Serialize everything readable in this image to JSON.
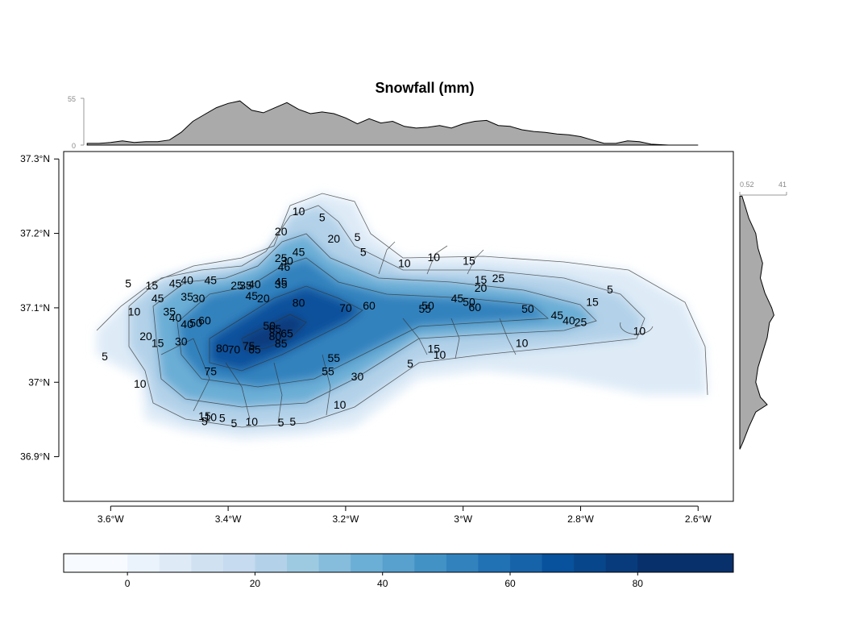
{
  "chart_data": {
    "type": "heatmap",
    "title": "Snowfall (mm)",
    "x_axis": {
      "range": [
        -3.68,
        -2.54
      ],
      "ticks": [
        -3.6,
        -3.4,
        -3.2,
        -3.0,
        -2.8,
        -2.6
      ],
      "tick_labels": [
        "3.6°W",
        "3.4°W",
        "3.2°W",
        "3°W",
        "2.8°W",
        "2.6°W"
      ]
    },
    "y_axis": {
      "range": [
        36.84,
        37.31
      ],
      "ticks": [
        36.9,
        37.0,
        37.1,
        37.2,
        37.3
      ],
      "tick_labels": [
        "36.9°N",
        "37°N",
        "37.1°N",
        "37.2°N",
        "37.3°N"
      ]
    },
    "colorbar": {
      "range": [
        -10,
        95
      ],
      "ticks": [
        0,
        20,
        40,
        60,
        80
      ],
      "tick_labels": [
        "0",
        "20",
        "40",
        "60",
        "80"
      ],
      "colors": [
        "#f7fbff",
        "#eaf3fb",
        "#deebf7",
        "#d0e2f2",
        "#c6dbef",
        "#b3d2e9",
        "#9ecae1",
        "#86bcdc",
        "#6baed6",
        "#58a0ce",
        "#4292c6",
        "#3282be",
        "#2171b5",
        "#1763aa",
        "#08519c",
        "#08468b",
        "#083b7b",
        "#08306b",
        "#08306b"
      ]
    },
    "top_marginal": {
      "range": [
        0,
        55
      ],
      "tick_labels": [
        "0",
        "55"
      ],
      "profile": [
        [
          -3.64,
          2
        ],
        [
          -3.62,
          2
        ],
        [
          -3.6,
          3
        ],
        [
          -3.58,
          5
        ],
        [
          -3.56,
          3
        ],
        [
          -3.54,
          4
        ],
        [
          -3.52,
          4
        ],
        [
          -3.5,
          6
        ],
        [
          -3.48,
          15
        ],
        [
          -3.46,
          28
        ],
        [
          -3.44,
          36
        ],
        [
          -3.42,
          44
        ],
        [
          -3.4,
          49
        ],
        [
          -3.38,
          52
        ],
        [
          -3.36,
          41
        ],
        [
          -3.34,
          38
        ],
        [
          -3.32,
          44
        ],
        [
          -3.3,
          50
        ],
        [
          -3.28,
          42
        ],
        [
          -3.26,
          37
        ],
        [
          -3.24,
          39
        ],
        [
          -3.22,
          37
        ],
        [
          -3.2,
          32
        ],
        [
          -3.18,
          25
        ],
        [
          -3.16,
          31
        ],
        [
          -3.14,
          26
        ],
        [
          -3.12,
          28
        ],
        [
          -3.1,
          22
        ],
        [
          -3.08,
          20
        ],
        [
          -3.06,
          21
        ],
        [
          -3.04,
          23
        ],
        [
          -3.02,
          20
        ],
        [
          -3.0,
          25
        ],
        [
          -2.98,
          28
        ],
        [
          -2.96,
          29
        ],
        [
          -2.94,
          23
        ],
        [
          -2.92,
          22
        ],
        [
          -2.9,
          18
        ],
        [
          -2.88,
          16
        ],
        [
          -2.86,
          15
        ],
        [
          -2.84,
          13
        ],
        [
          -2.82,
          12
        ],
        [
          -2.8,
          10
        ],
        [
          -2.78,
          6
        ],
        [
          -2.76,
          2
        ],
        [
          -2.74,
          2
        ],
        [
          -2.72,
          5
        ],
        [
          -2.7,
          4
        ],
        [
          -2.68,
          1
        ],
        [
          -2.65,
          0
        ],
        [
          -2.6,
          0
        ]
      ]
    },
    "right_marginal": {
      "range": [
        0.52,
        41
      ],
      "tick_labels": [
        "0.52",
        "41"
      ],
      "profile": [
        [
          37.25,
          2
        ],
        [
          37.24,
          4
        ],
        [
          37.22,
          8
        ],
        [
          37.2,
          14
        ],
        [
          37.18,
          16
        ],
        [
          37.16,
          20
        ],
        [
          37.14,
          18
        ],
        [
          37.12,
          22
        ],
        [
          37.1,
          28
        ],
        [
          37.09,
          30
        ],
        [
          37.08,
          26
        ],
        [
          37.06,
          24
        ],
        [
          37.04,
          20
        ],
        [
          37.02,
          16
        ],
        [
          37.0,
          14
        ],
        [
          36.98,
          18
        ],
        [
          36.97,
          24
        ],
        [
          36.96,
          14
        ],
        [
          36.94,
          8
        ],
        [
          36.92,
          3
        ],
        [
          36.91,
          0
        ]
      ]
    },
    "contour_labels": [
      {
        "text": "10",
        "lon": -3.28,
        "lat": 37.23
      },
      {
        "text": "5",
        "lon": -3.24,
        "lat": 37.222
      },
      {
        "text": "20",
        "lon": -3.31,
        "lat": 37.203
      },
      {
        "text": "20",
        "lon": -3.22,
        "lat": 37.193
      },
      {
        "text": "5",
        "lon": -3.18,
        "lat": 37.195
      },
      {
        "text": "45",
        "lon": -3.28,
        "lat": 37.175
      },
      {
        "text": "5",
        "lon": -3.17,
        "lat": 37.175
      },
      {
        "text": "25",
        "lon": -3.31,
        "lat": 37.167
      },
      {
        "text": "30",
        "lon": -3.3,
        "lat": 37.163
      },
      {
        "text": "46",
        "lon": -3.305,
        "lat": 37.155
      },
      {
        "text": "10",
        "lon": -3.1,
        "lat": 37.16
      },
      {
        "text": "10",
        "lon": -3.05,
        "lat": 37.168
      },
      {
        "text": "15",
        "lon": -2.99,
        "lat": 37.163
      },
      {
        "text": "25",
        "lon": -2.94,
        "lat": 37.14
      },
      {
        "text": "15",
        "lon": -2.97,
        "lat": 37.138
      },
      {
        "text": "20",
        "lon": -2.97,
        "lat": 37.127
      },
      {
        "text": "5",
        "lon": -2.75,
        "lat": 37.125
      },
      {
        "text": "5",
        "lon": -3.57,
        "lat": 37.133
      },
      {
        "text": "15",
        "lon": -3.53,
        "lat": 37.13
      },
      {
        "text": "45",
        "lon": -3.49,
        "lat": 37.133
      },
      {
        "text": "40",
        "lon": -3.47,
        "lat": 37.137
      },
      {
        "text": "45",
        "lon": -3.43,
        "lat": 37.137
      },
      {
        "text": "25",
        "lon": -3.385,
        "lat": 37.13
      },
      {
        "text": "35",
        "lon": -3.37,
        "lat": 37.13
      },
      {
        "text": "40",
        "lon": -3.355,
        "lat": 37.132
      },
      {
        "text": "45",
        "lon": -3.31,
        "lat": 37.135
      },
      {
        "text": "35",
        "lon": -3.31,
        "lat": 37.132
      },
      {
        "text": "45",
        "lon": -3.52,
        "lat": 37.113
      },
      {
        "text": "35",
        "lon": -3.47,
        "lat": 37.115
      },
      {
        "text": "30",
        "lon": -3.45,
        "lat": 37.113
      },
      {
        "text": "45",
        "lon": -3.36,
        "lat": 37.116
      },
      {
        "text": "20",
        "lon": -3.34,
        "lat": 37.113
      },
      {
        "text": "80",
        "lon": -3.28,
        "lat": 37.107
      },
      {
        "text": "70",
        "lon": -3.2,
        "lat": 37.1
      },
      {
        "text": "60",
        "lon": -3.16,
        "lat": 37.103
      },
      {
        "text": "45",
        "lon": -3.01,
        "lat": 37.113
      },
      {
        "text": "50",
        "lon": -2.99,
        "lat": 37.108
      },
      {
        "text": "50",
        "lon": -3.06,
        "lat": 37.103
      },
      {
        "text": "55",
        "lon": -3.065,
        "lat": 37.099
      },
      {
        "text": "60",
        "lon": -2.98,
        "lat": 37.101
      },
      {
        "text": "50",
        "lon": -2.89,
        "lat": 37.099
      },
      {
        "text": "15",
        "lon": -2.78,
        "lat": 37.108
      },
      {
        "text": "10",
        "lon": -3.56,
        "lat": 37.095
      },
      {
        "text": "35",
        "lon": -3.5,
        "lat": 37.095
      },
      {
        "text": "40",
        "lon": -3.49,
        "lat": 37.087
      },
      {
        "text": "40",
        "lon": -3.47,
        "lat": 37.078
      },
      {
        "text": "50",
        "lon": -3.455,
        "lat": 37.08
      },
      {
        "text": "60",
        "lon": -3.44,
        "lat": 37.083
      },
      {
        "text": "45",
        "lon": -2.84,
        "lat": 37.09
      },
      {
        "text": "40",
        "lon": -2.82,
        "lat": 37.083
      },
      {
        "text": "25",
        "lon": -2.8,
        "lat": 37.081
      },
      {
        "text": "10",
        "lon": -2.7,
        "lat": 37.069
      },
      {
        "text": "20",
        "lon": -3.54,
        "lat": 37.062
      },
      {
        "text": "15",
        "lon": -3.52,
        "lat": 37.053
      },
      {
        "text": "30",
        "lon": -3.48,
        "lat": 37.055
      },
      {
        "text": "50",
        "lon": -3.33,
        "lat": 37.076
      },
      {
        "text": "65",
        "lon": -3.32,
        "lat": 37.072
      },
      {
        "text": "65",
        "lon": -3.3,
        "lat": 37.066
      },
      {
        "text": "80",
        "lon": -3.32,
        "lat": 37.062
      },
      {
        "text": "85",
        "lon": -3.31,
        "lat": 37.052
      },
      {
        "text": "80",
        "lon": -3.41,
        "lat": 37.046
      },
      {
        "text": "70",
        "lon": -3.39,
        "lat": 37.044
      },
      {
        "text": "75",
        "lon": -3.365,
        "lat": 37.049
      },
      {
        "text": "65",
        "lon": -3.355,
        "lat": 37.044
      },
      {
        "text": "10",
        "lon": -2.9,
        "lat": 37.053
      },
      {
        "text": "15",
        "lon": -3.05,
        "lat": 37.045
      },
      {
        "text": "10",
        "lon": -3.04,
        "lat": 37.037
      },
      {
        "text": "5",
        "lon": -3.61,
        "lat": 37.035
      },
      {
        "text": "55",
        "lon": -3.22,
        "lat": 37.033
      },
      {
        "text": "5",
        "lon": -3.09,
        "lat": 37.025
      },
      {
        "text": "75",
        "lon": -3.43,
        "lat": 37.015
      },
      {
        "text": "55",
        "lon": -3.23,
        "lat": 37.015
      },
      {
        "text": "30",
        "lon": -3.18,
        "lat": 37.008
      },
      {
        "text": "10",
        "lon": -3.55,
        "lat": 36.998
      },
      {
        "text": "10",
        "lon": -3.21,
        "lat": 36.97
      },
      {
        "text": "15",
        "lon": -3.44,
        "lat": 36.955
      },
      {
        "text": "10",
        "lon": -3.43,
        "lat": 36.953
      },
      {
        "text": "5",
        "lon": -3.44,
        "lat": 36.948
      },
      {
        "text": "5",
        "lon": -3.41,
        "lat": 36.952
      },
      {
        "text": "5",
        "lon": -3.39,
        "lat": 36.945
      },
      {
        "text": "10",
        "lon": -3.36,
        "lat": 36.947
      },
      {
        "text": "5",
        "lon": -3.31,
        "lat": 36.946
      },
      {
        "text": "5",
        "lon": -3.29,
        "lat": 36.947
      }
    ]
  }
}
